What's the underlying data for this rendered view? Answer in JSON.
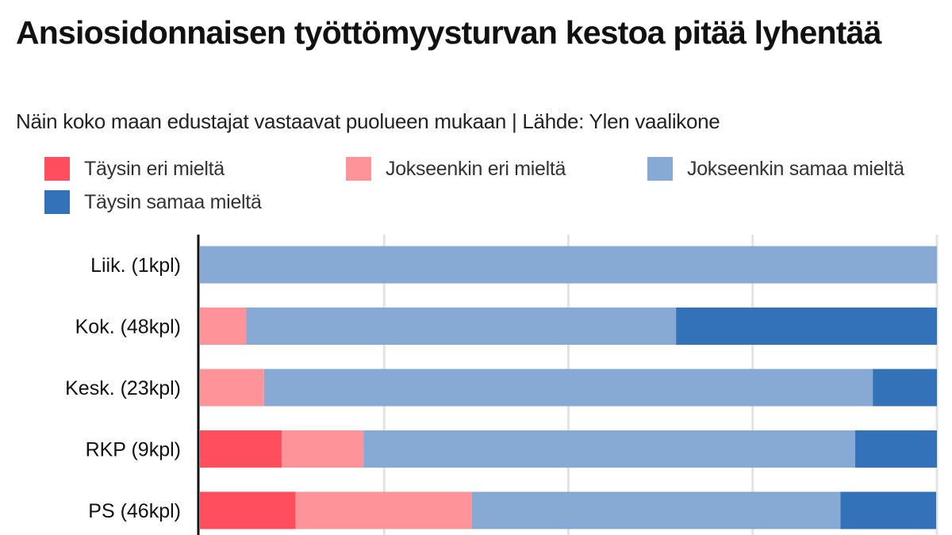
{
  "title": "Ansiosidonnaisen työttömyysturvan kestoa pitää lyhentää",
  "subtitle": "Näin koko maan edustajat vastaavat puolueen mukaan | Lähde: Ylen vaalikone",
  "legend": [
    {
      "label": "Täysin eri mieltä",
      "color": "#ff4f5e"
    },
    {
      "label": "Jokseenkin eri mieltä",
      "color": "#ff939a"
    },
    {
      "label": "Jokseenkin samaa mieltä",
      "color": "#86aad4"
    },
    {
      "label": "Täysin samaa mieltä",
      "color": "#3372b8"
    }
  ],
  "chart_data": {
    "type": "bar",
    "orientation": "horizontal",
    "stacked": true,
    "normalized": true,
    "categories": [
      "Liik. (1kpl)",
      "Kok. (48kpl)",
      "Kesk. (23kpl)",
      "RKP (9kpl)",
      "PS (46kpl)"
    ],
    "series": [
      {
        "name": "Täysin eri mieltä",
        "color": "#ff4f5e",
        "values": [
          0,
          0,
          0,
          11.1,
          13.0
        ]
      },
      {
        "name": "Jokseenkin eri mieltä",
        "color": "#ff939a",
        "values": [
          0,
          6.3,
          8.7,
          11.1,
          23.9
        ]
      },
      {
        "name": "Jokseenkin samaa mieltä",
        "color": "#86aad4",
        "values": [
          100,
          58.3,
          82.6,
          66.7,
          50.0
        ]
      },
      {
        "name": "Täysin samaa mieltä",
        "color": "#3372b8",
        "values": [
          0,
          35.4,
          8.7,
          11.1,
          13.0
        ]
      }
    ],
    "xlim": [
      0,
      100
    ],
    "grid": true,
    "legend_position": "top"
  }
}
